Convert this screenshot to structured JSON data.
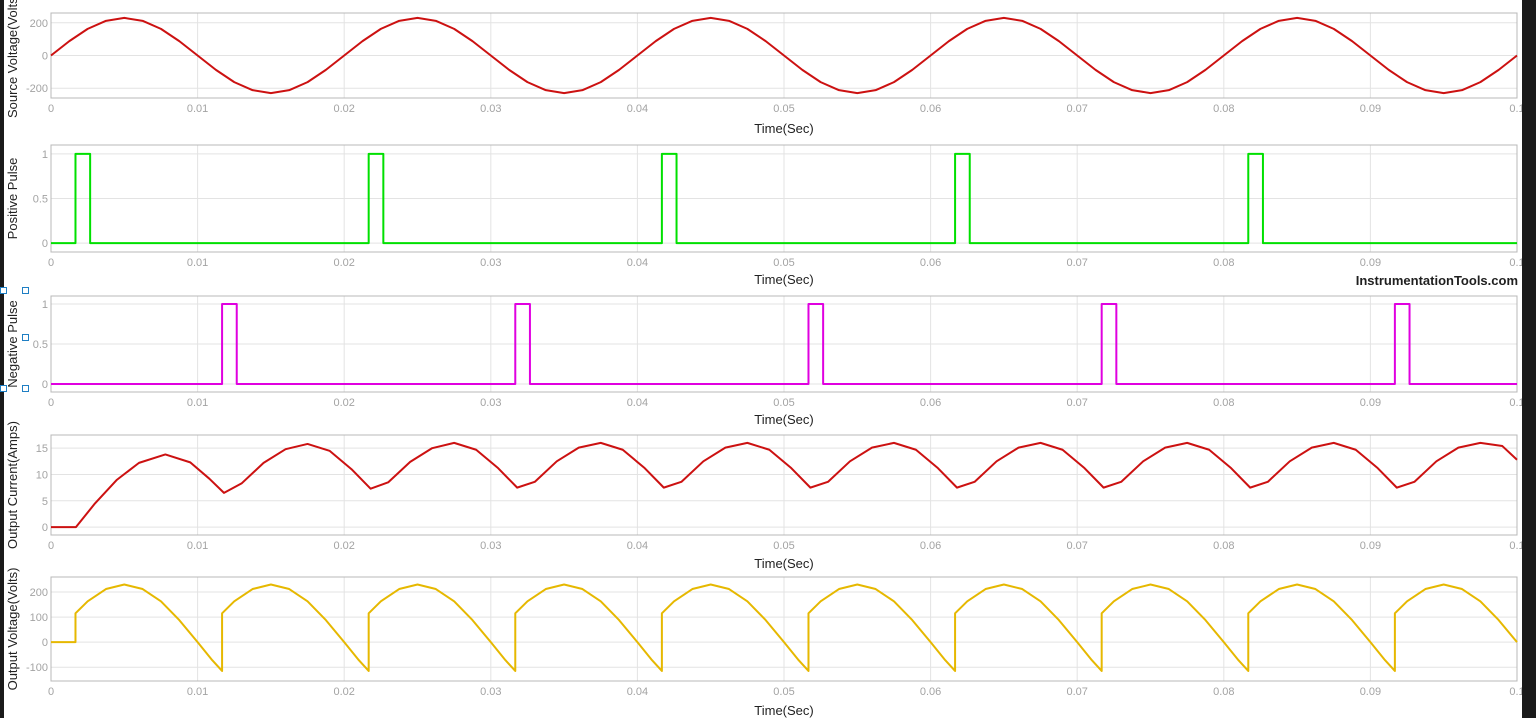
{
  "watermark": "InstrumentationTools.com",
  "chart_data": [
    {
      "type": "line",
      "ylabel": "Source Voltage(Volts)",
      "xlabel": "Time(Sec)",
      "xlim": [
        0,
        0.1
      ],
      "ylim": [
        -260,
        260
      ],
      "xticks": [
        "0",
        "0.01",
        "0.02",
        "0.03",
        "0.04",
        "0.05",
        "0.06",
        "0.07",
        "0.08",
        "0.09",
        "0.1"
      ],
      "yticks": [
        "200",
        "0",
        "-200"
      ],
      "grid": true,
      "color": "#cc1111",
      "series": [
        {
          "x": [
            0,
            0.00125,
            0.0025,
            0.00375,
            0.005,
            0.00625,
            0.0075,
            0.00875,
            0.01,
            0.01125,
            0.0125,
            0.01375,
            0.015,
            0.01625,
            0.0175,
            0.01875,
            0.02
          ],
          "values": [
            0,
            88,
            163,
            212,
            230,
            212,
            163,
            88,
            0,
            -88,
            -163,
            -212,
            -230,
            -212,
            -163,
            -88,
            0
          ],
          "repeat_period": 0.02
        }
      ]
    },
    {
      "type": "line",
      "ylabel": "Positive Pulse",
      "xlabel": "Time(Sec)",
      "xlim": [
        0,
        0.1
      ],
      "ylim": [
        -0.1,
        1.1
      ],
      "xticks": [
        "0",
        "0.01",
        "0.02",
        "0.03",
        "0.04",
        "0.05",
        "0.06",
        "0.07",
        "0.08",
        "0.09",
        "0.1"
      ],
      "yticks": [
        "1",
        "0.5",
        "0"
      ],
      "grid": true,
      "color": "#00e000",
      "series": [
        {
          "x": [
            0,
            0.00167,
            0.00167,
            0.00267,
            0.00267,
            0.02167,
            0.02167,
            0.02267,
            0.02267,
            0.04167,
            0.04167,
            0.04267,
            0.04267,
            0.06167,
            0.06167,
            0.06267,
            0.06267,
            0.08167,
            0.08167,
            0.08267,
            0.08267,
            0.1
          ],
          "values": [
            0,
            0,
            1,
            1,
            0,
            0,
            1,
            1,
            0,
            0,
            1,
            1,
            0,
            0,
            1,
            1,
            0,
            0,
            1,
            1,
            0,
            0
          ]
        }
      ]
    },
    {
      "type": "line",
      "ylabel": "Negative Pulse",
      "xlabel": "Time(Sec)",
      "xlim": [
        0,
        0.1
      ],
      "ylim": [
        -0.1,
        1.1
      ],
      "xticks": [
        "0",
        "0.01",
        "0.02",
        "0.03",
        "0.04",
        "0.05",
        "0.06",
        "0.07",
        "0.08",
        "0.09",
        "0.1"
      ],
      "yticks": [
        "1",
        "0.5",
        "0"
      ],
      "grid": true,
      "color": "#e000e0",
      "series": [
        {
          "x": [
            0,
            0.01167,
            0.01167,
            0.01267,
            0.01267,
            0.03167,
            0.03167,
            0.03267,
            0.03267,
            0.05167,
            0.05167,
            0.05267,
            0.05267,
            0.07167,
            0.07167,
            0.07267,
            0.07267,
            0.09167,
            0.09167,
            0.09267,
            0.09267,
            0.1
          ],
          "values": [
            0,
            0,
            1,
            1,
            0,
            0,
            1,
            1,
            0,
            0,
            1,
            1,
            0,
            0,
            1,
            1,
            0,
            0,
            1,
            1,
            0,
            0
          ]
        }
      ]
    },
    {
      "type": "line",
      "ylabel": "Output Current(Amps)",
      "xlabel": "Time(Sec)",
      "xlim": [
        0,
        0.1
      ],
      "ylim": [
        -1.5,
        17.5
      ],
      "xticks": [
        "0",
        "0.01",
        "0.02",
        "0.03",
        "0.04",
        "0.05",
        "0.06",
        "0.07",
        "0.08",
        "0.09",
        "0.1"
      ],
      "yticks": [
        "15",
        "10",
        "5",
        "0"
      ],
      "grid": true,
      "color": "#cc1111",
      "series": [
        {
          "x": [
            0,
            0.0017,
            0.003,
            0.0045,
            0.006,
            0.0078,
            0.0095,
            0.0108,
            0.0118,
            0.013,
            0.0145,
            0.016,
            0.0175,
            0.019,
            0.0205,
            0.0218,
            0.023,
            0.0245,
            0.026,
            0.0275,
            0.029,
            0.0305,
            0.0318,
            0.033,
            0.0345,
            0.036,
            0.0375,
            0.039,
            0.0405,
            0.0418,
            0.043,
            0.0445,
            0.046,
            0.0475,
            0.049,
            0.0505,
            0.0518,
            0.053,
            0.0545,
            0.056,
            0.0575,
            0.059,
            0.0605,
            0.0618,
            0.063,
            0.0645,
            0.066,
            0.0675,
            0.069,
            0.0705,
            0.0718,
            0.073,
            0.0745,
            0.076,
            0.0775,
            0.079,
            0.0805,
            0.0818,
            0.083,
            0.0845,
            0.086,
            0.0875,
            0.089,
            0.0905,
            0.0918,
            0.093,
            0.0945,
            0.096,
            0.0975,
            0.099,
            0.1
          ],
          "values": [
            0,
            0,
            4.5,
            9,
            12.2,
            13.8,
            12.3,
            9.2,
            6.5,
            8.3,
            12.2,
            14.8,
            15.8,
            14.5,
            11,
            7.3,
            8.5,
            12.4,
            15,
            16,
            14.7,
            11.2,
            7.5,
            8.6,
            12.5,
            15.1,
            16,
            14.7,
            11.2,
            7.5,
            8.6,
            12.5,
            15.1,
            16,
            14.7,
            11.2,
            7.5,
            8.6,
            12.5,
            15.1,
            16,
            14.7,
            11.2,
            7.5,
            8.6,
            12.5,
            15.1,
            16,
            14.7,
            11.2,
            7.5,
            8.6,
            12.5,
            15.1,
            16,
            14.7,
            11.2,
            7.5,
            8.6,
            12.5,
            15.1,
            16,
            14.7,
            11.2,
            7.5,
            8.6,
            12.5,
            15.1,
            16,
            15.4,
            12.8
          ]
        }
      ]
    },
    {
      "type": "line",
      "ylabel": "Output Voltage(Volts)",
      "xlabel": "Time(Sec)",
      "xlim": [
        0,
        0.1
      ],
      "ylim": [
        -155,
        260
      ],
      "xticks": [
        "0",
        "0.01",
        "0.02",
        "0.03",
        "0.04",
        "0.05",
        "0.06",
        "0.07",
        "0.08",
        "0.09",
        "0.1"
      ],
      "yticks": [
        "200",
        "100",
        "0",
        "-100"
      ],
      "grid": true,
      "color": "#e6b800",
      "series": [
        {
          "x": [
            0,
            0.00167,
            0.00167,
            0.0025,
            0.00375,
            0.005,
            0.00625,
            0.0075,
            0.00875,
            0.01,
            0.011,
            0.01167,
            0.01167,
            0.0125,
            0.01375,
            0.015,
            0.01625,
            0.0175,
            0.01875,
            0.02,
            0.021,
            0.02167
          ],
          "values": [
            0,
            0,
            115,
            163,
            212,
            230,
            212,
            163,
            88,
            0,
            -72,
            -115,
            115,
            163,
            212,
            230,
            212,
            163,
            88,
            0,
            -72,
            -115
          ],
          "repeat_from": 0.01167,
          "repeat_period": 0.01
        }
      ]
    }
  ]
}
